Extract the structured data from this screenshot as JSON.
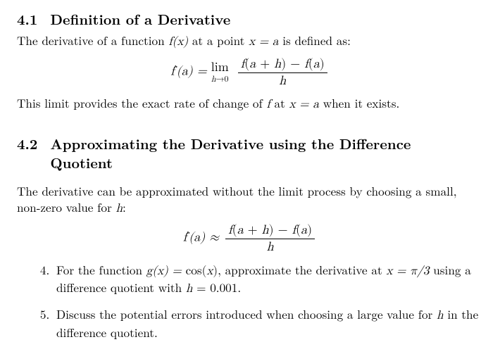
{
  "section41": {
    "number": "4.1",
    "title": "Definition of a Derivative",
    "intro_pre": "The derivative of a function ",
    "intro_fx": "f(x)",
    "intro_mid": " at a point ",
    "intro_pt": "x = a",
    "intro_post": " is defined as:",
    "eq_lhs_f": "f",
    "eq_lhs_arg": "(a) = ",
    "eq_lim_word": "lim",
    "eq_lim_sub_h": "h",
    "eq_lim_sub_arrow": "→",
    "eq_lim_sub_zero": "0",
    "eq_num_f1": "f",
    "eq_num_paren1": "(a + h) − ",
    "eq_num_f2": "f",
    "eq_num_paren2": "(a)",
    "eq_den": "h",
    "after_pre": "This limit provides the exact rate of change of ",
    "after_f": "f",
    "after_mid": " at ",
    "after_pt": "x = a",
    "after_post": " when it exists."
  },
  "section42": {
    "number": "4.2",
    "title": "Approximating the Derivative using the Difference Quotient",
    "intro_pre": "The derivative can be approximated without the limit process by choosing a small, non-zero value for ",
    "intro_h": "h",
    "intro_post": ":",
    "eq_lhs_f": "f",
    "eq_lhs_arg": "(a) ≈ ",
    "eq_num_f1": "f",
    "eq_num_paren1": "(a + h) − ",
    "eq_num_f2": "f",
    "eq_num_paren2": "(a)",
    "eq_den": "h"
  },
  "items": {
    "start": 4,
    "q4_pre": "For the function ",
    "q4_g": "g(x) = ",
    "q4_cos_word": "cos",
    "q4_cos_arg": "(x)",
    "q4_mid": ", approximate the derivative at ",
    "q4_pt": "x = π/3",
    "q4_mid2": " using a difference quotient with ",
    "q4_h": "h = 0.001",
    "q4_end": ".",
    "q5_pre": "Discuss the potential errors introduced when choosing a large value for ",
    "q5_h": "h",
    "q5_post": " in the difference quotient."
  }
}
